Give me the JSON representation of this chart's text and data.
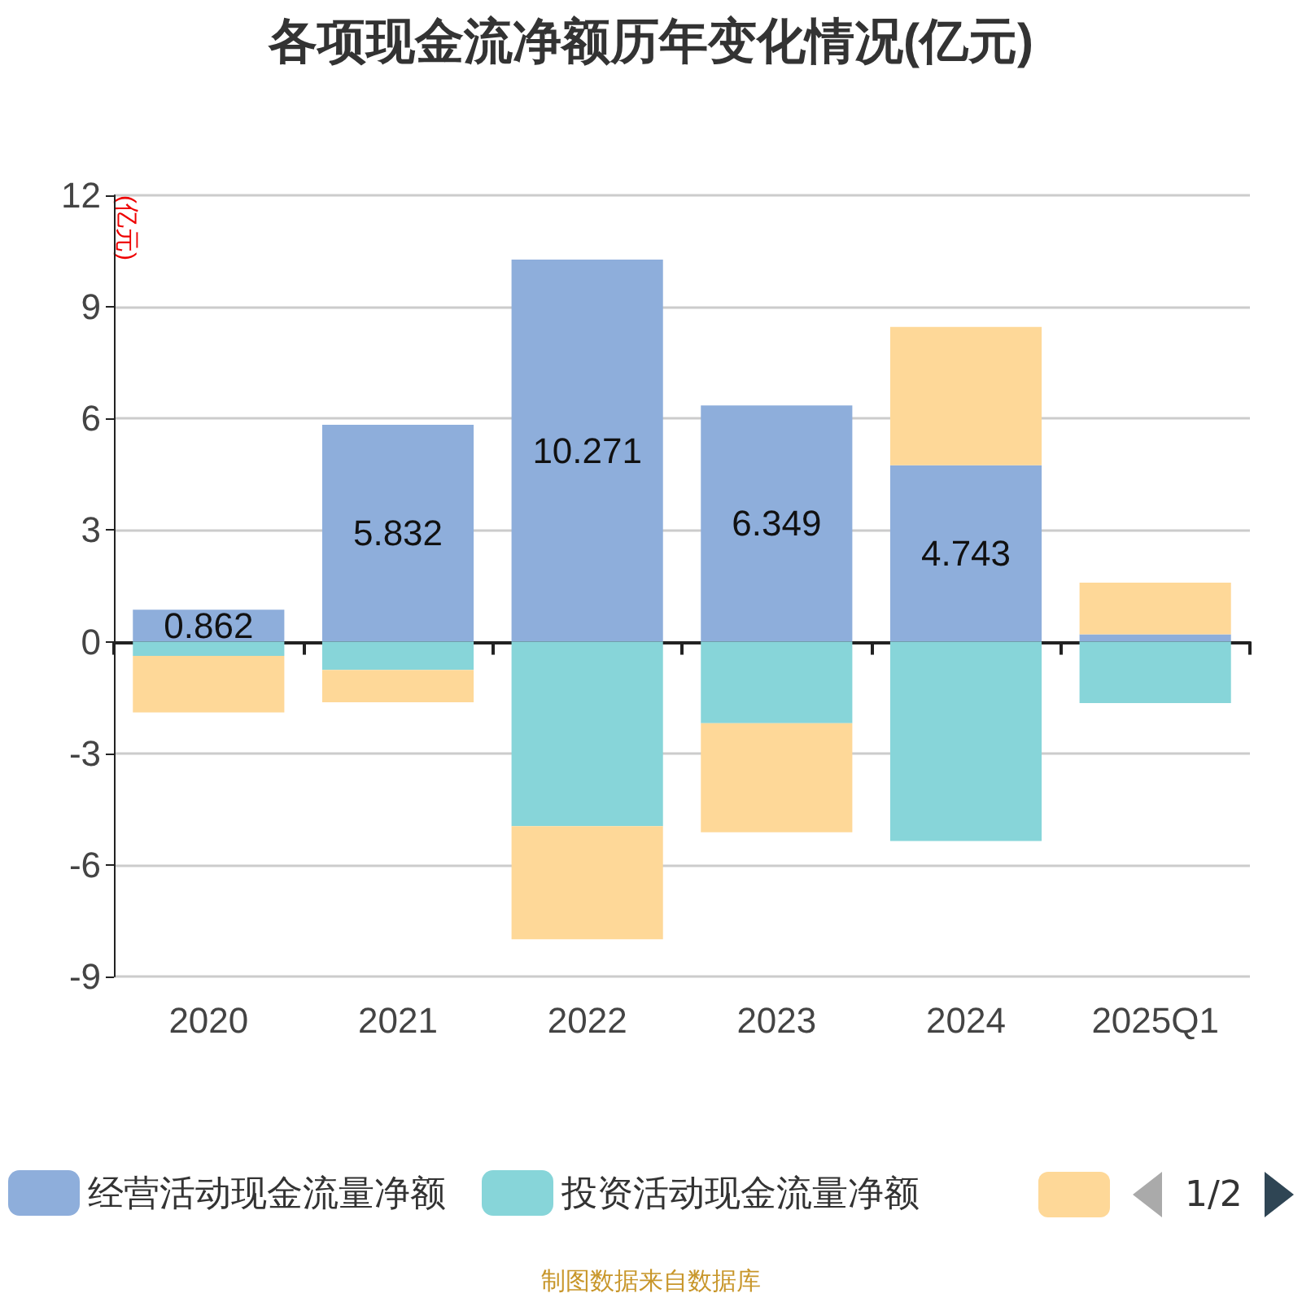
{
  "chart_data": {
    "type": "bar",
    "title": "各项现金流净额历年变化情况(亿元)",
    "ylabel": "(亿元)",
    "categories": [
      "2020",
      "2021",
      "2022",
      "2023",
      "2024",
      "2025Q1"
    ],
    "stacked": true,
    "series": [
      {
        "name": "经营活动现金流量净额",
        "color": "#8eaedb",
        "values": [
          0.862,
          5.832,
          10.271,
          6.349,
          4.743,
          0.2
        ],
        "value_labels": [
          "0.862",
          "5.832",
          "10.271",
          "6.349",
          "4.743",
          null
        ]
      },
      {
        "name": "投资活动现金流量净额",
        "color": "#87d5d9",
        "values": [
          -0.38,
          -0.76,
          -4.96,
          -2.19,
          -5.36,
          -1.65
        ]
      },
      {
        "color": "#fed898",
        "values": [
          -1.52,
          -0.87,
          -3.04,
          -2.93,
          3.72,
          1.39
        ]
      }
    ],
    "ylim": [
      -9,
      12
    ],
    "yticks": [
      -9,
      -6,
      -3,
      0,
      3,
      6,
      9,
      12
    ],
    "grid": "y",
    "legend": "bottom",
    "annotations": [
      "制图数据来自数据库",
      "1/2"
    ]
  }
}
